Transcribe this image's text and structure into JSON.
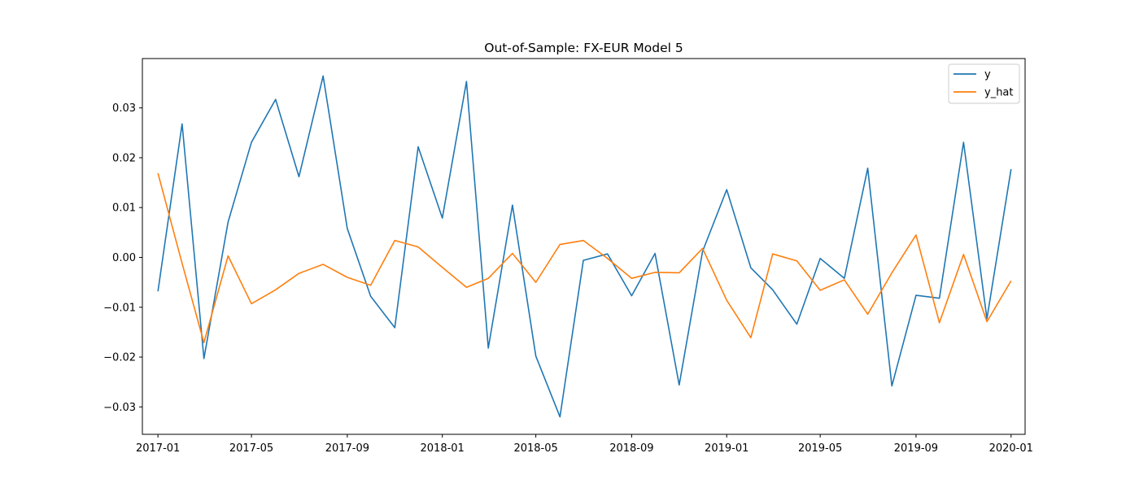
{
  "chart_data": {
    "type": "line",
    "title": "Out-of-Sample: FX-EUR Model 5",
    "xlabel": "",
    "ylabel": "",
    "x": [
      "2017-01",
      "2017-02",
      "2017-03",
      "2017-04",
      "2017-05",
      "2017-06",
      "2017-07",
      "2017-08",
      "2017-09",
      "2017-10",
      "2017-11",
      "2017-12",
      "2018-01",
      "2018-02",
      "2018-03",
      "2018-04",
      "2018-05",
      "2018-06",
      "2018-07",
      "2018-08",
      "2018-09",
      "2018-10",
      "2018-11",
      "2018-12",
      "2019-01",
      "2019-02",
      "2019-03",
      "2019-04",
      "2019-05",
      "2019-06",
      "2019-07",
      "2019-08",
      "2019-09",
      "2019-10",
      "2019-11",
      "2019-12",
      "2020-01"
    ],
    "series": [
      {
        "name": "y",
        "color": "#1f77b4",
        "values": [
          -0.0068,
          0.0268,
          -0.0203,
          0.0071,
          0.0231,
          0.0317,
          0.0162,
          0.0364,
          0.0058,
          -0.0078,
          -0.0141,
          0.0222,
          0.0079,
          0.0353,
          -0.0182,
          0.0105,
          -0.0198,
          -0.032,
          -0.0006,
          0.0007,
          -0.0077,
          0.0008,
          -0.0256,
          0.0012,
          0.0136,
          -0.0021,
          -0.0065,
          -0.0134,
          -0.0002,
          -0.0042,
          0.0179,
          -0.0258,
          -0.0076,
          -0.0082,
          0.0231,
          -0.0123,
          0.0177
        ]
      },
      {
        "name": "y_hat",
        "color": "#ff7f0e",
        "values": [
          0.0169,
          -0.0012,
          -0.0171,
          0.0003,
          -0.0093,
          -0.0065,
          -0.0032,
          -0.0014,
          -0.004,
          -0.0056,
          0.0034,
          0.0021,
          -0.002,
          -0.006,
          -0.0042,
          0.0008,
          -0.005,
          0.0026,
          0.0034,
          -0.0002,
          -0.0042,
          -0.003,
          -0.0031,
          0.0018,
          -0.0086,
          -0.0161,
          0.0007,
          -0.0007,
          -0.0066,
          -0.0045,
          -0.0114,
          -0.0031,
          0.0045,
          -0.0131,
          0.0006,
          -0.0129,
          -0.0047
        ]
      }
    ],
    "x_ticks": [
      "2017-01",
      "2017-05",
      "2017-09",
      "2018-01",
      "2018-05",
      "2018-09",
      "2019-01",
      "2019-05",
      "2019-09",
      "2020-01"
    ],
    "y_ticks": [
      -0.03,
      -0.02,
      -0.01,
      0.0,
      0.01,
      0.02,
      0.03
    ],
    "y_tick_labels": [
      "−0.03",
      "−0.02",
      "−0.01",
      "0.00",
      "0.01",
      "0.02",
      "0.03"
    ],
    "xlim": [
      "2016-12-12",
      "2020-01-19"
    ],
    "ylim": [
      -0.0355,
      0.0399
    ],
    "grid": false,
    "legend_position": "top-right"
  }
}
